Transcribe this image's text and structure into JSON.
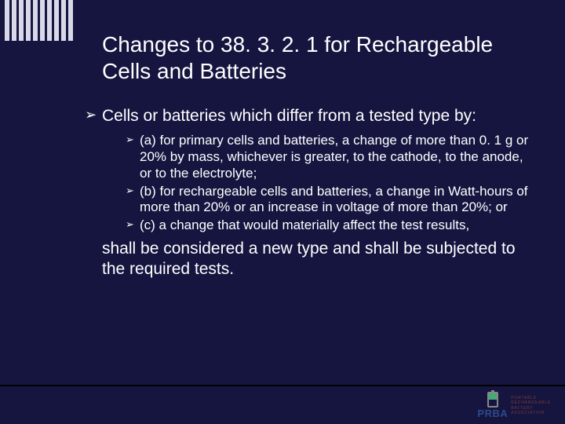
{
  "title": "Changes to 38. 3. 2. 1 for Rechargeable Cells and Batteries",
  "bullet_glyph": "➢",
  "lvl1_text": "Cells or batteries which differ from a tested type by:",
  "sub_items": [
    "(a) for primary cells and batteries, a change of more than 0. 1 g or 20% by mass, whichever is greater, to the cathode, to the anode, or to the electrolyte;",
    "(b) for rechargeable cells and batteries, a change in Watt-hours of more than 20% or an increase in voltage of more than 20%; or",
    "(c) a change that would materially affect the test results,"
  ],
  "closing": "shall be considered a new type and shall be subjected to the required tests.",
  "logo": {
    "abbr": "PRBA",
    "lines": [
      "PORTABLE",
      "RECHARGEABLE",
      "BATTERY",
      "ASSOCIATION"
    ]
  },
  "colors": {
    "background": "#151540",
    "text": "#ffffff",
    "bars": "#d8d8e8"
  }
}
